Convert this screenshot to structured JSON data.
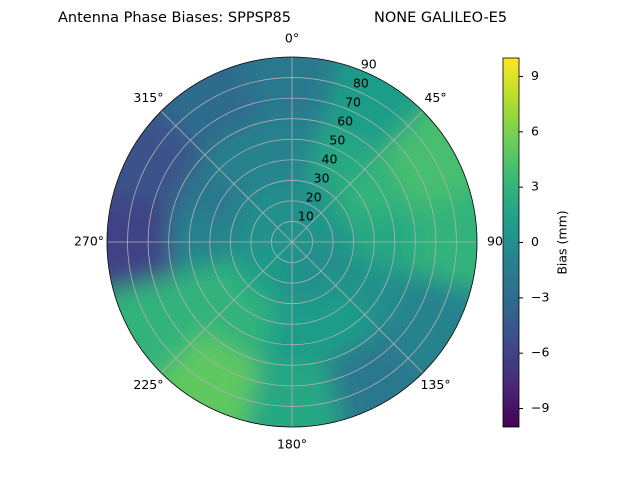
{
  "chart_data": {
    "type": "polar_contour",
    "title": "Antenna Phase Biases: SPPSP85",
    "subtitle": "NONE GALILEO-E5",
    "colorbar_label": "Bias (mm)",
    "clim": [
      -10,
      10
    ],
    "cticks": [
      {
        "value": -9,
        "label": "−9"
      },
      {
        "value": -6,
        "label": "−6"
      },
      {
        "value": -3,
        "label": "−3"
      },
      0,
      3,
      6,
      9
    ],
    "rlim": [
      0,
      90
    ],
    "rticks": [
      10,
      20,
      30,
      40,
      50,
      60,
      70,
      80,
      90
    ],
    "thetaticks": [
      {
        "value": 0,
        "label": "0°"
      },
      {
        "value": 45,
        "label": "45°"
      },
      {
        "value": 90,
        "label": "90"
      },
      {
        "value": 135,
        "label": "135°"
      },
      {
        "value": 180,
        "label": "180°"
      },
      {
        "value": 225,
        "label": "225°"
      },
      {
        "value": 270,
        "label": "270°"
      },
      {
        "value": 315,
        "label": "315°"
      }
    ],
    "azimuths": [
      0,
      30,
      60,
      90,
      120,
      150,
      180,
      210,
      240,
      270,
      300,
      330
    ],
    "zenith_bins": [
      0,
      30,
      60,
      90
    ],
    "values": [
      [
        0,
        -1,
        -2
      ],
      [
        0,
        2,
        1
      ],
      [
        1,
        3,
        4
      ],
      [
        0,
        2,
        3
      ],
      [
        0,
        0,
        -1
      ],
      [
        0,
        1,
        -2
      ],
      [
        0,
        1,
        2
      ],
      [
        1,
        3,
        5
      ],
      [
        1,
        3,
        3
      ],
      [
        0,
        -1,
        -6
      ],
      [
        0,
        -2,
        -5
      ],
      [
        0,
        -1,
        -3
      ]
    ],
    "grid": true
  }
}
